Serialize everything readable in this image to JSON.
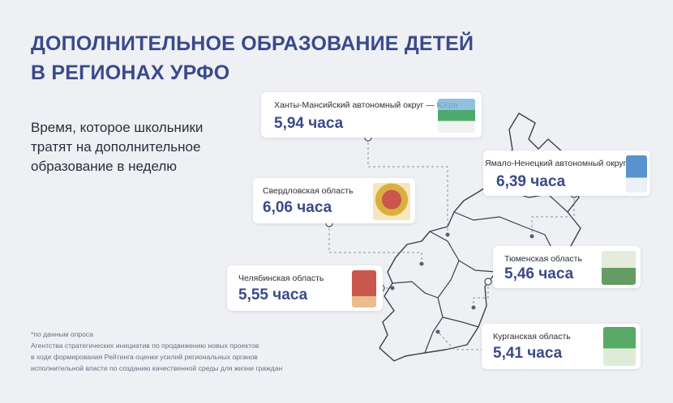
{
  "header": {
    "title_line1": "ДОПОЛНИТЕЛЬНОЕ ОБРАЗОВАНИЕ ДЕТЕЙ",
    "title_line2": "В РЕГИОНАХ УРФО"
  },
  "description": "Время, которое школьники тратят на дополнительное образование в неделю",
  "regions": [
    {
      "name": "Ханты-Мансийский автономный округ — Югра",
      "value": "5,94 часа",
      "accent": "#2e9a55"
    },
    {
      "name": "Ямало-Ненецкий автономный округ",
      "value": "6,39 часа",
      "accent": "#3d7fc4"
    },
    {
      "name": "Свердловская область",
      "value": "6,06 часа",
      "accent": "#d4a11e"
    },
    {
      "name": "Тюменская область",
      "value": "5,46 часа",
      "accent": "#4a8a4a"
    },
    {
      "name": "Челябинская область",
      "value": "5,55 часа",
      "accent": "#c0392b"
    },
    {
      "name": "Курганская область",
      "value": "5,41 часа",
      "accent": "#3a9a4a"
    }
  ],
  "footnote": {
    "line1": "*по данным опроса",
    "line2": "Агентства стратегических инициатив по продвижению новых проектов",
    "line3": "в ходе формирования Рейтинга оценки усилий региональных органов",
    "line4": "исполнительной  власти по созданию качественной среды для жизни граждан"
  },
  "colors": {
    "title": "#3a4a8a",
    "value": "#3a4a8a",
    "map_outline": "#3b3f4a",
    "background": "#eef0f4"
  }
}
